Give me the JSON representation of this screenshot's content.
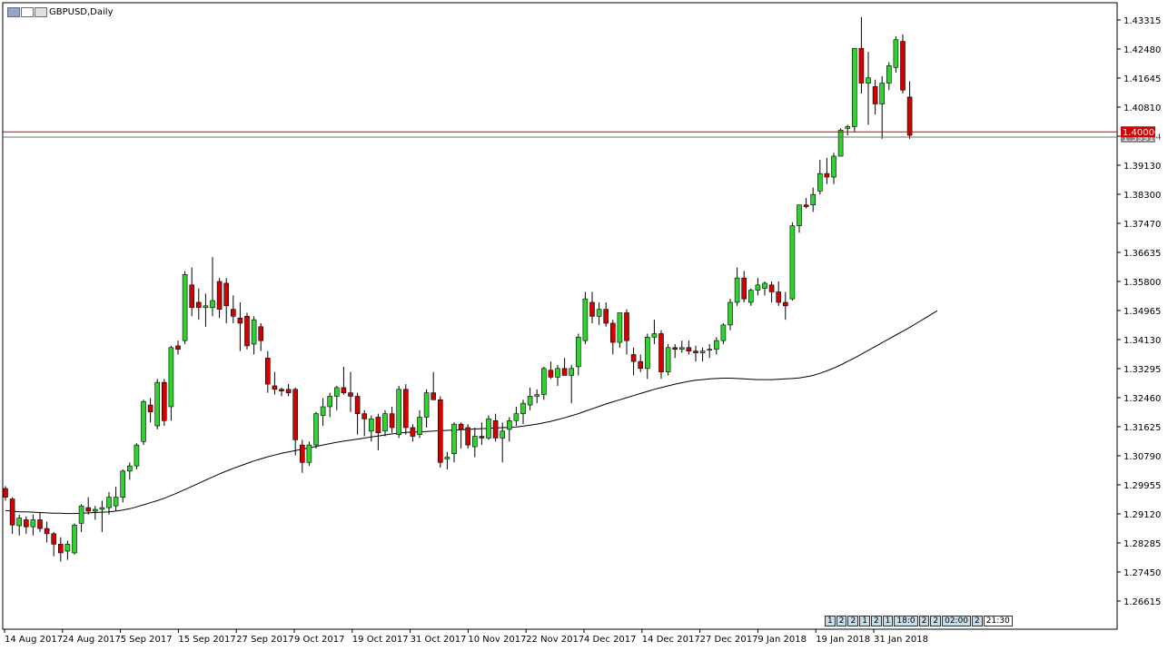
{
  "window": {
    "title": "GBPUSD,Daily",
    "icons": [
      "window-menu-icon",
      "window-restore-icon",
      "window-close-icon"
    ]
  },
  "colors": {
    "bull_candle": "#2fd32f",
    "bear_candle": "#d30000",
    "wick": "#000000",
    "ma_line": "#000000",
    "price_line": "#d30000",
    "price_tag_bg": "#d30000",
    "price_tag_text": "#ffffff",
    "background": "#ffffff"
  },
  "price_axis": {
    "labels": [
      "1.43315",
      "1.42480",
      "1.41645",
      "1.40810",
      "1.39914",
      "1.39130",
      "1.38300",
      "1.37470",
      "1.36635",
      "1.35800",
      "1.34965",
      "1.34130",
      "1.33295",
      "1.32460",
      "1.31625",
      "1.30790",
      "1.29955",
      "1.29120",
      "1.28285",
      "1.27450",
      "1.26615"
    ],
    "current_price": "1.40000",
    "ask_price": "1.39914"
  },
  "time_axis": {
    "labels": [
      "14 Aug 2017",
      "24 Aug 2017",
      "5 Sep 2017",
      "15 Sep 2017",
      "27 Sep 2017",
      "9 Oct 2017",
      "19 Oct 2017",
      "31 Oct 2017",
      "10 Nov 2017",
      "22 Nov 2017",
      "4 Dec 2017",
      "14 Dec 2017",
      "27 Dec 2017",
      "9 Jan 2018",
      "19 Jan 2018",
      "31 Jan 2018"
    ]
  },
  "time_strip": {
    "cells": [
      "1",
      "2",
      "2",
      "1",
      "2",
      "1",
      "18:0",
      "2",
      "2",
      "02:00",
      "2"
    ],
    "time": "21:30"
  },
  "chart_data": {
    "type": "candlestick",
    "symbol": "GBPUSD",
    "timeframe": "Daily",
    "ylim": [
      1.2595,
      1.4375
    ],
    "candles": [
      [
        1.2985,
        1.2992,
        1.295,
        1.296
      ],
      [
        1.2955,
        1.296,
        1.2855,
        1.288
      ],
      [
        1.2878,
        1.291,
        1.285,
        1.29
      ],
      [
        1.2895,
        1.2905,
        1.2855,
        1.2875
      ],
      [
        1.2875,
        1.291,
        1.285,
        1.2895
      ],
      [
        1.2895,
        1.2915,
        1.286,
        1.287
      ],
      [
        1.287,
        1.289,
        1.283,
        1.2855
      ],
      [
        1.2855,
        1.286,
        1.279,
        1.2825
      ],
      [
        1.2825,
        1.2845,
        1.2775,
        1.28
      ],
      [
        1.2805,
        1.2835,
        1.278,
        1.2825
      ],
      [
        1.28,
        1.2885,
        1.2795,
        1.288
      ],
      [
        1.2885,
        1.294,
        1.286,
        1.2935
      ],
      [
        1.293,
        1.296,
        1.291,
        1.292
      ],
      [
        1.292,
        1.2935,
        1.2895,
        1.2925
      ],
      [
        1.2925,
        1.295,
        1.286,
        1.293
      ],
      [
        1.293,
        1.2975,
        1.291,
        1.296
      ],
      [
        1.2935,
        1.299,
        1.292,
        1.296
      ],
      [
        1.296,
        1.304,
        1.2945,
        1.3035
      ],
      [
        1.3035,
        1.306,
        1.301,
        1.305
      ],
      [
        1.305,
        1.3115,
        1.304,
        1.311
      ],
      [
        1.312,
        1.324,
        1.311,
        1.3235
      ],
      [
        1.3225,
        1.3245,
        1.3175,
        1.3205
      ],
      [
        1.3165,
        1.33,
        1.3155,
        1.329
      ],
      [
        1.329,
        1.33,
        1.3165,
        1.318
      ],
      [
        1.322,
        1.3395,
        1.318,
        1.339
      ],
      [
        1.3395,
        1.341,
        1.337,
        1.3385
      ],
      [
        1.341,
        1.361,
        1.34,
        1.36
      ],
      [
        1.357,
        1.362,
        1.348,
        1.3505
      ],
      [
        1.352,
        1.356,
        1.347,
        1.3505
      ],
      [
        1.3505,
        1.3545,
        1.345,
        1.351
      ],
      [
        1.3505,
        1.365,
        1.348,
        1.3525
      ],
      [
        1.358,
        1.359,
        1.3475,
        1.35
      ],
      [
        1.3575,
        1.359,
        1.346,
        1.351
      ],
      [
        1.35,
        1.354,
        1.346,
        1.348
      ],
      [
        1.3475,
        1.352,
        1.338,
        1.346
      ],
      [
        1.348,
        1.349,
        1.3385,
        1.3395
      ],
      [
        1.34,
        1.348,
        1.337,
        1.347
      ],
      [
        1.345,
        1.346,
        1.338,
        1.341
      ],
      [
        1.336,
        1.338,
        1.326,
        1.3285
      ],
      [
        1.328,
        1.332,
        1.3255,
        1.327
      ],
      [
        1.327,
        1.3275,
        1.325,
        1.3265
      ],
      [
        1.327,
        1.3285,
        1.325,
        1.326
      ],
      [
        1.327,
        1.3275,
        1.308,
        1.3125
      ],
      [
        1.311,
        1.3125,
        1.303,
        1.306
      ],
      [
        1.306,
        1.312,
        1.305,
        1.311
      ],
      [
        1.311,
        1.3205,
        1.31,
        1.32
      ],
      [
        1.3195,
        1.3245,
        1.3165,
        1.322
      ],
      [
        1.322,
        1.326,
        1.319,
        1.325
      ],
      [
        1.325,
        1.328,
        1.321,
        1.3275
      ],
      [
        1.3275,
        1.3335,
        1.3255,
        1.326
      ],
      [
        1.326,
        1.332,
        1.3205,
        1.325
      ],
      [
        1.325,
        1.326,
        1.314,
        1.32
      ],
      [
        1.32,
        1.321,
        1.3135,
        1.3185
      ],
      [
        1.315,
        1.3195,
        1.312,
        1.3185
      ],
      [
        1.319,
        1.32,
        1.3095,
        1.3145
      ],
      [
        1.315,
        1.321,
        1.3135,
        1.32
      ],
      [
        1.32,
        1.322,
        1.3145,
        1.316
      ],
      [
        1.314,
        1.328,
        1.313,
        1.327
      ],
      [
        1.327,
        1.3285,
        1.314,
        1.316
      ],
      [
        1.316,
        1.317,
        1.312,
        1.3135
      ],
      [
        1.314,
        1.321,
        1.313,
        1.319
      ],
      [
        1.319,
        1.327,
        1.316,
        1.326
      ],
      [
        1.326,
        1.332,
        1.324,
        1.324
      ],
      [
        1.324,
        1.325,
        1.3045,
        1.306
      ],
      [
        1.307,
        1.309,
        1.304,
        1.3075
      ],
      [
        1.3085,
        1.3175,
        1.306,
        1.317
      ],
      [
        1.317,
        1.3175,
        1.31,
        1.3155
      ],
      [
        1.316,
        1.317,
        1.31,
        1.311
      ],
      [
        1.3105,
        1.316,
        1.3075,
        1.3135
      ],
      [
        1.3135,
        1.3175,
        1.311,
        1.313
      ],
      [
        1.313,
        1.3195,
        1.3125,
        1.3185
      ],
      [
        1.318,
        1.32,
        1.312,
        1.313
      ],
      [
        1.313,
        1.3175,
        1.306,
        1.315
      ],
      [
        1.3155,
        1.319,
        1.312,
        1.318
      ],
      [
        1.318,
        1.322,
        1.3165,
        1.32
      ],
      [
        1.32,
        1.324,
        1.317,
        1.323
      ],
      [
        1.3225,
        1.3275,
        1.321,
        1.325
      ],
      [
        1.325,
        1.327,
        1.323,
        1.3255
      ],
      [
        1.3255,
        1.3335,
        1.324,
        1.333
      ],
      [
        1.3325,
        1.335,
        1.33,
        1.3305
      ],
      [
        1.3305,
        1.334,
        1.328,
        1.333
      ],
      [
        1.333,
        1.336,
        1.331,
        1.331
      ],
      [
        1.331,
        1.334,
        1.323,
        1.333
      ],
      [
        1.3335,
        1.343,
        1.331,
        1.342
      ],
      [
        1.341,
        1.355,
        1.34,
        1.353
      ],
      [
        1.352,
        1.355,
        1.346,
        1.348
      ],
      [
        1.348,
        1.352,
        1.3455,
        1.35
      ],
      [
        1.35,
        1.352,
        1.345,
        1.346
      ],
      [
        1.346,
        1.347,
        1.337,
        1.3405
      ],
      [
        1.3405,
        1.349,
        1.339,
        1.349
      ],
      [
        1.349,
        1.35,
        1.337,
        1.341
      ],
      [
        1.337,
        1.339,
        1.331,
        1.335
      ],
      [
        1.335,
        1.337,
        1.332,
        1.333
      ],
      [
        1.333,
        1.343,
        1.33,
        1.342
      ],
      [
        1.342,
        1.347,
        1.34,
        1.343
      ],
      [
        1.343,
        1.344,
        1.33,
        1.332
      ],
      [
        1.332,
        1.34,
        1.331,
        1.339
      ],
      [
        1.339,
        1.34,
        1.336,
        1.3385
      ],
      [
        1.3385,
        1.341,
        1.3375,
        1.339
      ],
      [
        1.339,
        1.341,
        1.337,
        1.338
      ],
      [
        1.338,
        1.3395,
        1.335,
        1.3375
      ],
      [
        1.3375,
        1.339,
        1.335,
        1.338
      ],
      [
        1.3385,
        1.34,
        1.336,
        1.3385
      ],
      [
        1.3385,
        1.342,
        1.337,
        1.341
      ],
      [
        1.341,
        1.346,
        1.34,
        1.3455
      ],
      [
        1.3455,
        1.353,
        1.344,
        1.352
      ],
      [
        1.352,
        1.362,
        1.351,
        1.359
      ],
      [
        1.359,
        1.361,
        1.352,
        1.353
      ],
      [
        1.352,
        1.356,
        1.351,
        1.3555
      ],
      [
        1.3555,
        1.359,
        1.354,
        1.357
      ],
      [
        1.356,
        1.358,
        1.354,
        1.3575
      ],
      [
        1.357,
        1.358,
        1.352,
        1.355
      ],
      [
        1.355,
        1.358,
        1.351,
        1.352
      ],
      [
        1.352,
        1.355,
        1.347,
        1.351
      ],
      [
        1.353,
        1.375,
        1.3525,
        1.374
      ],
      [
        1.374,
        1.38,
        1.372,
        1.38
      ],
      [
        1.38,
        1.382,
        1.379,
        1.3795
      ],
      [
        1.38,
        1.385,
        1.378,
        1.383
      ],
      [
        1.384,
        1.393,
        1.383,
        1.389
      ],
      [
        1.389,
        1.3935,
        1.386,
        1.388
      ],
      [
        1.388,
        1.395,
        1.386,
        1.394
      ],
      [
        1.394,
        1.402,
        1.394,
        1.4015
      ],
      [
        1.402,
        1.403,
        1.4,
        1.4025
      ],
      [
        1.4025,
        1.425,
        1.401,
        1.425
      ],
      [
        1.425,
        1.434,
        1.412,
        1.415
      ],
      [
        1.415,
        1.424,
        1.403,
        1.4165
      ],
      [
        1.414,
        1.416,
        1.406,
        1.409
      ],
      [
        1.409,
        1.417,
        1.399,
        1.415
      ],
      [
        1.415,
        1.421,
        1.413,
        1.42
      ],
      [
        1.4195,
        1.4285,
        1.418,
        1.4275
      ],
      [
        1.427,
        1.429,
        1.412,
        1.413
      ],
      [
        1.411,
        1.4155,
        1.399,
        1.4
      ]
    ],
    "moving_average": [
      1.2922,
      1.292,
      1.2918,
      1.2918,
      1.2917,
      1.2916,
      1.2915,
      1.2914,
      1.2914,
      1.2913,
      1.2913,
      1.2914,
      1.2915,
      1.2916,
      1.2917,
      1.2918,
      1.292,
      1.2923,
      1.2927,
      1.2932,
      1.2938,
      1.2944,
      1.295,
      1.2957,
      1.2965,
      1.2973,
      1.2982,
      1.2991,
      1.3,
      1.3009,
      1.3018,
      1.3027,
      1.3035,
      1.3043,
      1.305,
      1.3057,
      1.3064,
      1.307,
      1.3076,
      1.3081,
      1.3086,
      1.309,
      1.3094,
      1.3098,
      1.3102,
      1.3106,
      1.311,
      1.3114,
      1.3118,
      1.3121,
      1.3124,
      1.3127,
      1.313,
      1.3133,
      1.3136,
      1.3139,
      1.3142,
      1.3144,
      1.3146,
      1.3147,
      1.3148,
      1.3149,
      1.315,
      1.3151,
      1.3152,
      1.3153,
      1.3154,
      1.3155,
      1.3156,
      1.3157,
      1.3158,
      1.3159,
      1.316,
      1.3161,
      1.3162,
      1.3164,
      1.3167,
      1.317,
      1.3174,
      1.3178,
      1.3183,
      1.3188,
      1.3194,
      1.32,
      1.3207,
      1.3214,
      1.3221,
      1.3228,
      1.3234,
      1.324,
      1.3246,
      1.3252,
      1.3258,
      1.3264,
      1.327,
      1.3275,
      1.328,
      1.3285,
      1.3289,
      1.3293,
      1.3296,
      1.3298,
      1.33,
      1.3301,
      1.3302,
      1.3302,
      1.3301,
      1.33,
      1.3299,
      1.3298,
      1.3298,
      1.3298,
      1.3299,
      1.33,
      1.3301,
      1.3303,
      1.3306,
      1.331,
      1.3316,
      1.3323,
      1.3331,
      1.334,
      1.335,
      1.336,
      1.3371,
      1.3382,
      1.3393,
      1.3404,
      1.3415,
      1.3426,
      1.3437,
      1.3448,
      1.346,
      1.3472,
      1.3484,
      1.3496
    ],
    "horizontal_lines": [
      1.401,
      1.3995
    ]
  }
}
